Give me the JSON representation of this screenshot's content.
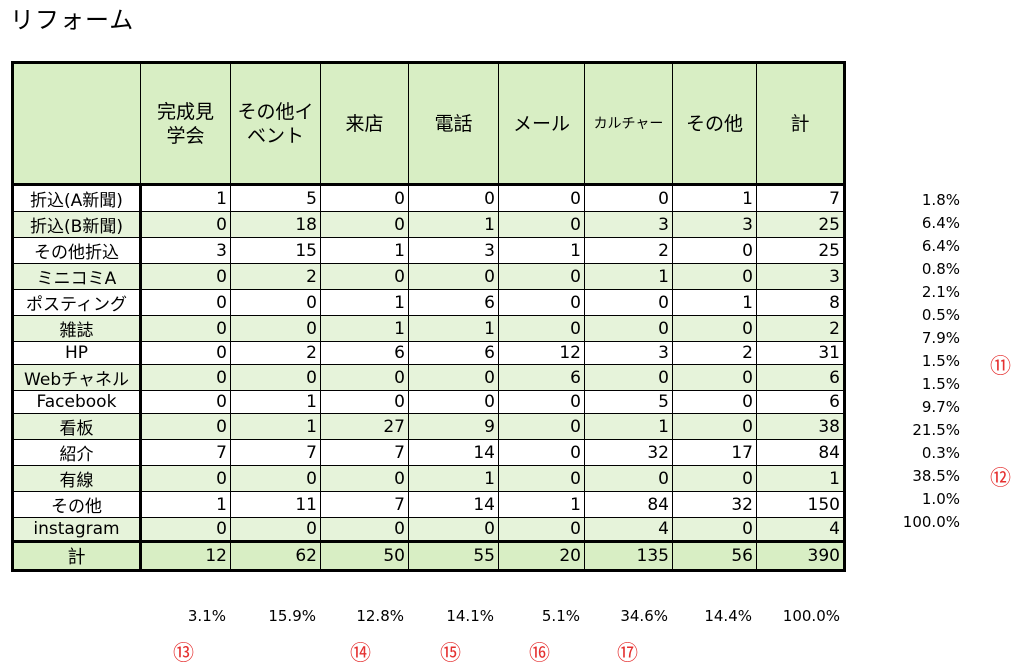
{
  "title": "リフォーム",
  "table": {
    "headers": [
      "完成見学会",
      "その他イベント",
      "来店",
      "電話",
      "メール",
      "カルチャー",
      "その他",
      "計"
    ],
    "rows": [
      {
        "label": "折込(A新聞)",
        "values": [
          "1",
          "5",
          "0",
          "0",
          "0",
          "0",
          "1",
          "7"
        ],
        "pct": "1.8%"
      },
      {
        "label": "折込(B新聞)",
        "values": [
          "0",
          "18",
          "0",
          "1",
          "0",
          "3",
          "3",
          "25"
        ],
        "pct": "6.4%"
      },
      {
        "label": "その他折込",
        "values": [
          "3",
          "15",
          "1",
          "3",
          "1",
          "2",
          "0",
          "25"
        ],
        "pct": "6.4%"
      },
      {
        "label": "ミニコミA",
        "values": [
          "0",
          "2",
          "0",
          "0",
          "0",
          "1",
          "0",
          "3"
        ],
        "pct": "0.8%"
      },
      {
        "label": "ポスティング",
        "values": [
          "0",
          "0",
          "1",
          "6",
          "0",
          "0",
          "1",
          "8"
        ],
        "pct": "2.1%"
      },
      {
        "label": "雑誌",
        "values": [
          "0",
          "0",
          "1",
          "1",
          "0",
          "0",
          "0",
          "2"
        ],
        "pct": "0.5%"
      },
      {
        "label": "HP",
        "values": [
          "0",
          "2",
          "6",
          "6",
          "12",
          "3",
          "2",
          "31"
        ],
        "pct": "7.9%"
      },
      {
        "label": "Webチャネル",
        "values": [
          "0",
          "0",
          "0",
          "0",
          "6",
          "0",
          "0",
          "6"
        ],
        "pct": "1.5%"
      },
      {
        "label": "Facebook",
        "values": [
          "0",
          "1",
          "0",
          "0",
          "0",
          "5",
          "0",
          "6"
        ],
        "pct": "1.5%"
      },
      {
        "label": "看板",
        "values": [
          "0",
          "1",
          "27",
          "9",
          "0",
          "1",
          "0",
          "38"
        ],
        "pct": "9.7%"
      },
      {
        "label": "紹介",
        "values": [
          "7",
          "7",
          "7",
          "14",
          "0",
          "32",
          "17",
          "84"
        ],
        "pct": "21.5%"
      },
      {
        "label": "有線",
        "values": [
          "0",
          "0",
          "0",
          "1",
          "0",
          "0",
          "0",
          "1"
        ],
        "pct": "0.3%"
      },
      {
        "label": "その他",
        "values": [
          "1",
          "11",
          "7",
          "14",
          "1",
          "84",
          "32",
          "150"
        ],
        "pct": "38.5%"
      },
      {
        "label": "instagram",
        "values": [
          "0",
          "0",
          "0",
          "0",
          "0",
          "4",
          "0",
          "4"
        ],
        "pct": "1.0%"
      }
    ],
    "total": {
      "label": "計",
      "values": [
        "12",
        "62",
        "50",
        "55",
        "20",
        "135",
        "56",
        "390"
      ],
      "pct": "100.0%"
    },
    "column_pct": [
      "3.1%",
      "15.9%",
      "12.8%",
      "14.1%",
      "5.1%",
      "34.6%",
      "14.4%",
      "100.0%"
    ]
  },
  "markers": {
    "m11": "⑪",
    "m12": "⑫",
    "m13": "⑬",
    "m14": "⑭",
    "m15": "⑮",
    "m16": "⑯",
    "m17": "⑰"
  },
  "colors": {
    "header_green": "#d8eec4",
    "row_green": "#e6f3da",
    "marker_red": "#e53030"
  }
}
